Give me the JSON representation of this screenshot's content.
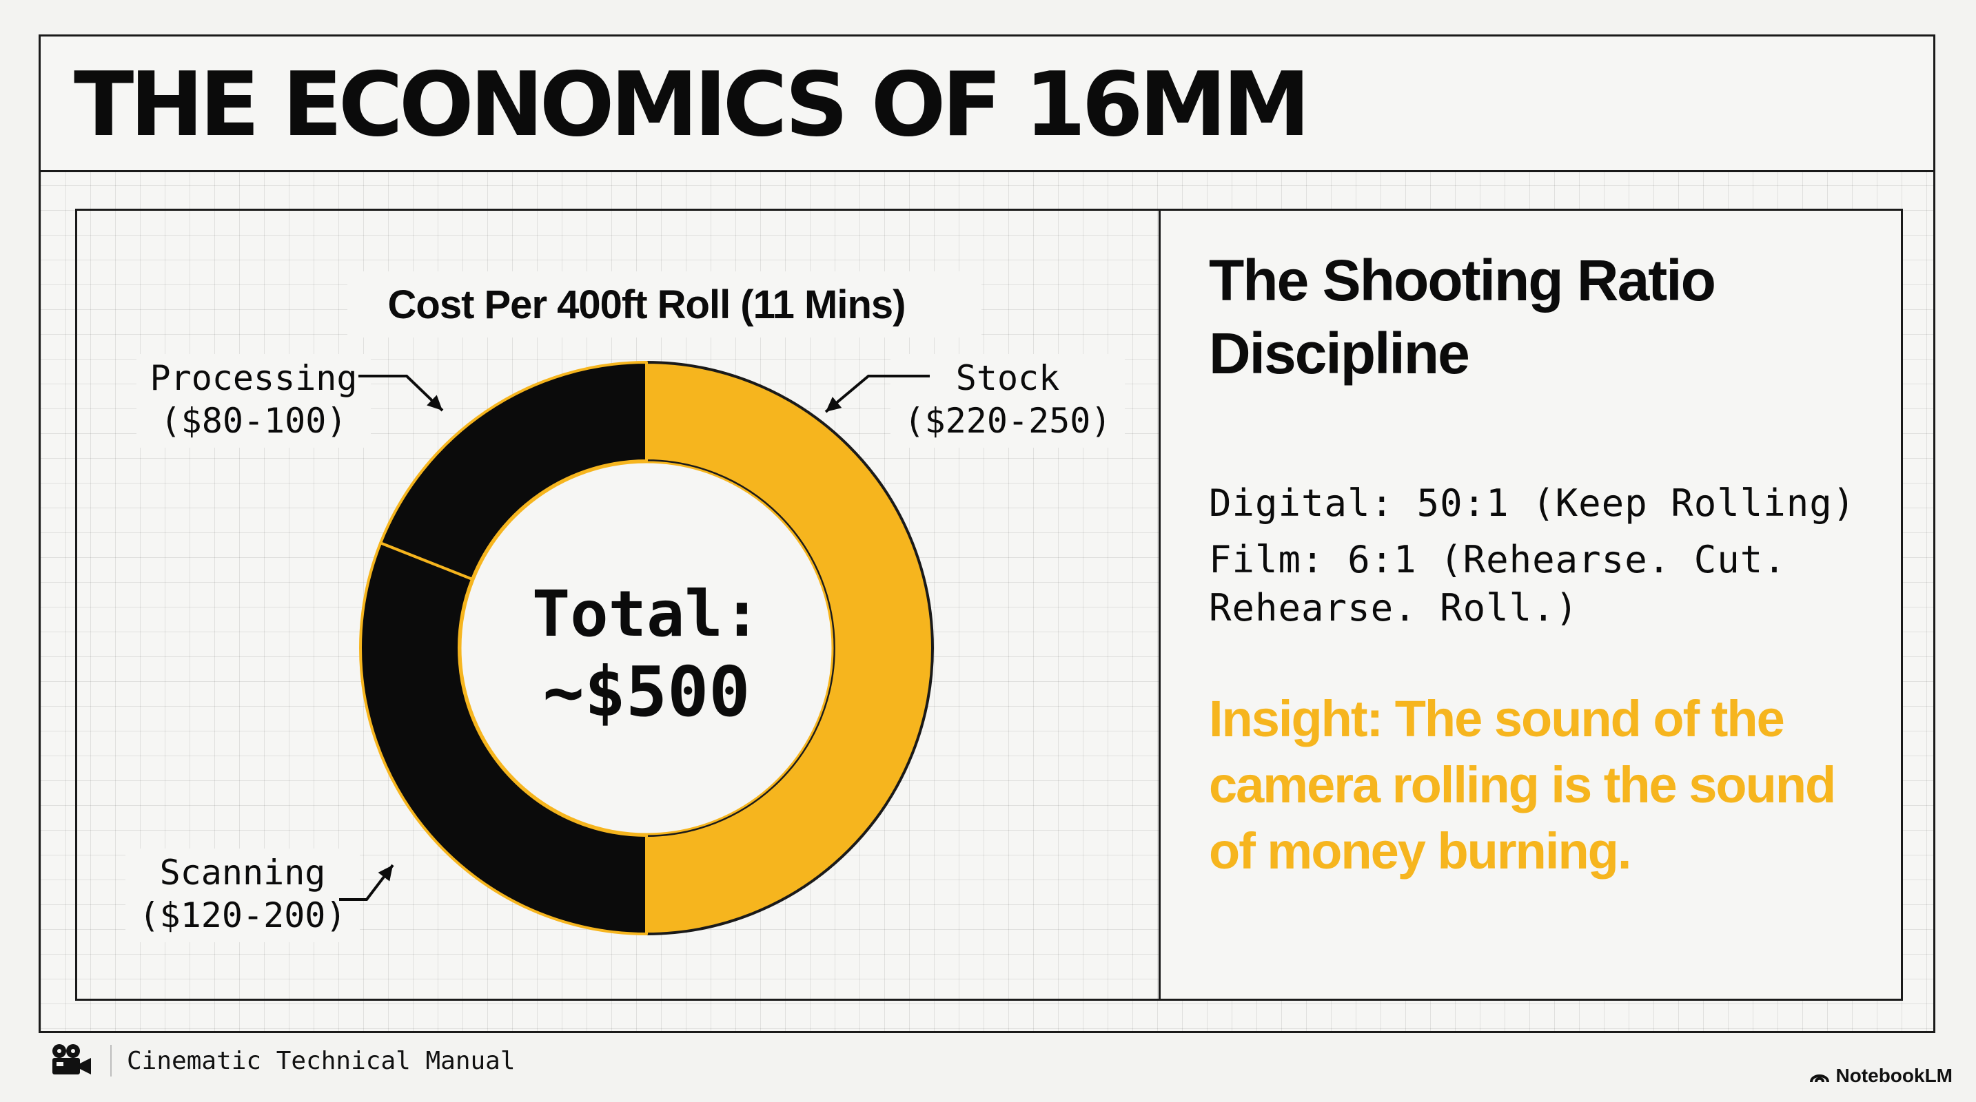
{
  "page": {
    "title": "THE ECONOMICS OF 16MM"
  },
  "chart_data": {
    "type": "pie",
    "title": "Cost Per 400ft Roll (11 Mins)",
    "center_label": [
      "Total:",
      "~$500"
    ],
    "slices": [
      {
        "label": "Stock",
        "range": "($220-250)",
        "value": 250,
        "color": "#f6b51e"
      },
      {
        "label": "Scanning",
        "range": "($120-200)",
        "value": 155,
        "color": "#0b0b0b"
      },
      {
        "label": "Processing",
        "range": "($80-100)",
        "value": 95,
        "color": "#0b0b0b"
      }
    ],
    "colors": {
      "stock": "#f6b51e",
      "dark": "#0b0b0b",
      "edge": "#f6b51e"
    }
  },
  "panel": {
    "heading": "The Shooting Ratio Discipline",
    "lines": [
      "Digital: 50:1 (Keep Rolling)",
      "Film: 6:1 (Rehearse. Cut. Rehearse. Roll.)"
    ],
    "insight": "Insight: The sound of the camera rolling is the sound of money burning.",
    "insight_color": "#f6b51e"
  },
  "footer": {
    "label": "Cinematic Technical Manual",
    "icon": "film-camera-icon"
  },
  "brand": {
    "name": "NotebookLM",
    "icon": "notebooklm-logo-icon"
  }
}
